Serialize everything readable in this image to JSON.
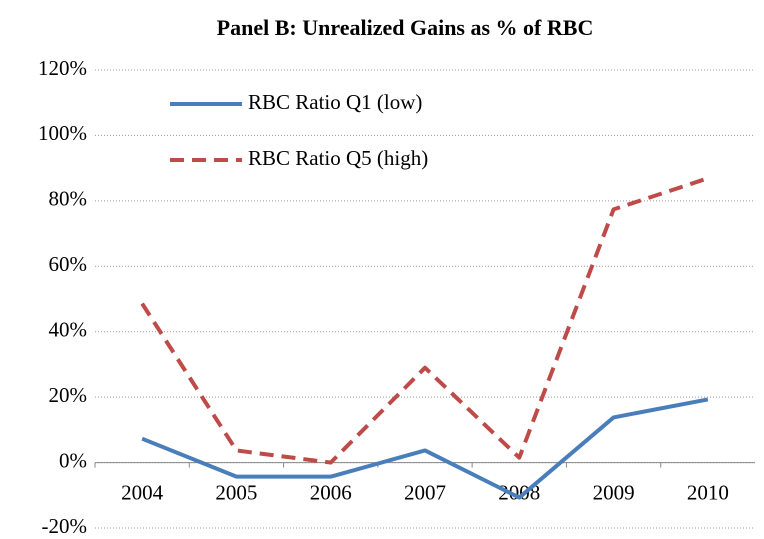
{
  "chart_data": {
    "type": "line",
    "title": "Panel B: Unrealized Gains as % of RBC",
    "categories": [
      "2004",
      "2005",
      "2006",
      "2007",
      "2008",
      "2009",
      "2010"
    ],
    "series": [
      {
        "name": "RBC Ratio Q1 (low)",
        "color": "#4a7ebb",
        "linestyle": "solid",
        "values": [
          7.3,
          -4.3,
          -4.3,
          3.7,
          -10.7,
          13.8,
          19.3
        ]
      },
      {
        "name": "RBC Ratio Q5 (high)",
        "color": "#be4b48",
        "linestyle": "dashed",
        "values": [
          48.6,
          3.7,
          0,
          29,
          1.5,
          77.4,
          86.9
        ]
      }
    ],
    "ylim": [
      -20,
      120
    ],
    "yticks": [
      {
        "value": -20,
        "label": "-20%"
      },
      {
        "value": 0,
        "label": "0%"
      },
      {
        "value": 20,
        "label": "20%"
      },
      {
        "value": 40,
        "label": "40%"
      },
      {
        "value": 60,
        "label": "60%"
      },
      {
        "value": 80,
        "label": "80%"
      },
      {
        "value": 100,
        "label": "100%"
      },
      {
        "value": 120,
        "label": "120%"
      }
    ],
    "grid": true,
    "legend": "upper left"
  }
}
